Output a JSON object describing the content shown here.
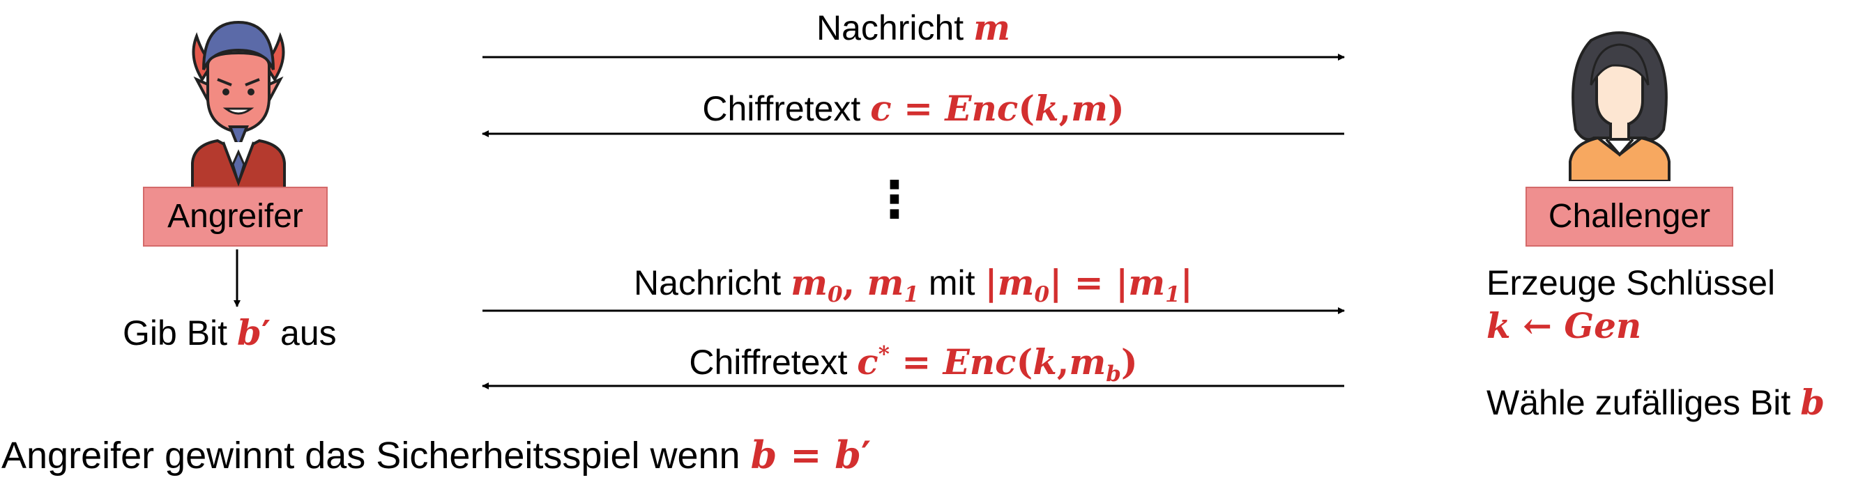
{
  "attacker": {
    "label": "Angreifer",
    "icon": "devil-icon",
    "output_prefix": "Gib Bit",
    "output_var": "b",
    "output_prime": "′",
    "output_suffix": "aus"
  },
  "challenger": {
    "label": "Challenger",
    "icon": "woman-icon",
    "keygen_text": "Erzeuge Schlüssel",
    "keygen_formula_k": "k",
    "keygen_formula_arrow": "←",
    "keygen_formula_gen": "Gen",
    "bit_text": "Wähle zufälliges Bit",
    "bit_var": "b"
  },
  "messages": {
    "m1_text": "Nachricht",
    "m1_var": "m",
    "m2_text": "Chiffretext",
    "m2_c": "c",
    "m2_eq": "=",
    "m2_enc": "Enc",
    "m2_open": "(",
    "m2_k": "k",
    "m2_comma": ",",
    "m2_m": "m",
    "m2_close": ")",
    "dots": "⋮",
    "m3_text": "Nachricht",
    "m3_m0": "m",
    "m3_sub0": "0",
    "m3_comma": ",",
    "m3_m1": "m",
    "m3_sub1": "1",
    "m3_mit": "mit",
    "m3_bar": "|",
    "m3_eq": "=",
    "m4_text": "Chiffretext",
    "m4_c": "c",
    "m4_star": "*",
    "m4_eq": "=",
    "m4_enc": "Enc",
    "m4_open": "(",
    "m4_k": "k",
    "m4_comma": ",",
    "m4_m": "m",
    "m4_subb": "b",
    "m4_close": ")"
  },
  "win": {
    "text": "Angreifer gewinnt das Sicherheitsspiel wenn",
    "b": "b",
    "eq": "=",
    "b2": "b",
    "prime": "′"
  },
  "colors": {
    "accent": "#d32f2f",
    "box_fill": "#ef8f8f",
    "box_border": "#d46a6a"
  }
}
